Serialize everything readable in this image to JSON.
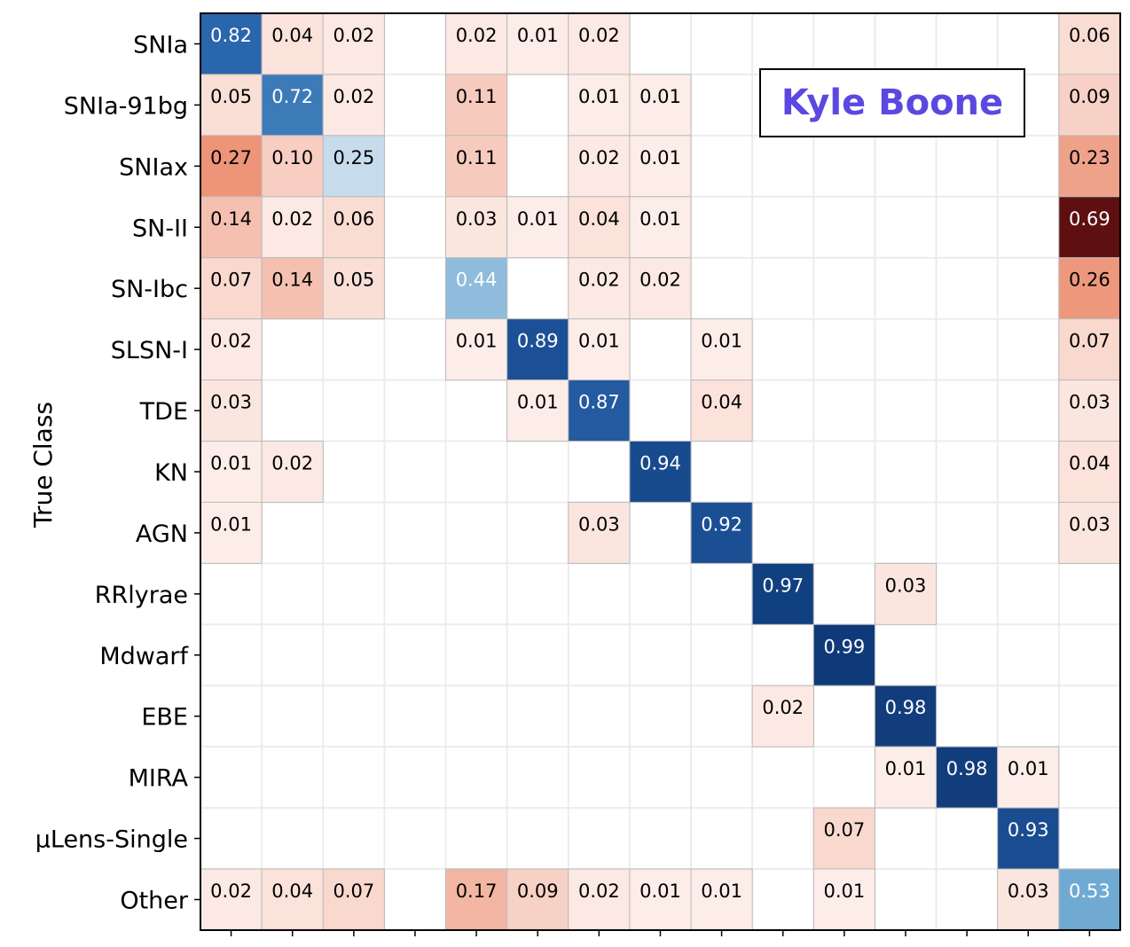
{
  "chart_data": {
    "type": "heatmap",
    "ylabel": "True Class",
    "xlabel": "",
    "row_labels": [
      "SNIa",
      "SNIa-91bg",
      "SNIax",
      "SN-II",
      "SN-Ibc",
      "SLSN-I",
      "TDE",
      "KN",
      "AGN",
      "RRlyrae",
      "Mdwarf",
      "EBE",
      "MIRA",
      "μLens-Single",
      "Other"
    ],
    "n_cols": 15,
    "values": [
      [
        0.82,
        0.04,
        0.02,
        null,
        0.02,
        0.01,
        0.02,
        null,
        null,
        null,
        null,
        null,
        null,
        null,
        0.06
      ],
      [
        0.05,
        0.72,
        0.02,
        null,
        0.11,
        null,
        0.01,
        0.01,
        null,
        null,
        null,
        null,
        null,
        null,
        0.09
      ],
      [
        0.27,
        0.1,
        0.25,
        null,
        0.11,
        null,
        0.02,
        0.01,
        null,
        null,
        null,
        null,
        null,
        null,
        0.23
      ],
      [
        0.14,
        0.02,
        0.06,
        null,
        0.03,
        0.01,
        0.04,
        0.01,
        null,
        null,
        null,
        null,
        null,
        null,
        0.69
      ],
      [
        0.07,
        0.14,
        0.05,
        null,
        0.44,
        null,
        0.02,
        0.02,
        null,
        null,
        null,
        null,
        null,
        null,
        0.26
      ],
      [
        0.02,
        null,
        null,
        null,
        0.01,
        0.89,
        0.01,
        null,
        0.01,
        null,
        null,
        null,
        null,
        null,
        0.07
      ],
      [
        0.03,
        null,
        null,
        null,
        null,
        0.01,
        0.87,
        null,
        0.04,
        null,
        null,
        null,
        null,
        null,
        0.03
      ],
      [
        0.01,
        0.02,
        null,
        null,
        null,
        null,
        null,
        0.94,
        null,
        null,
        null,
        null,
        null,
        null,
        0.04
      ],
      [
        0.01,
        null,
        null,
        null,
        null,
        null,
        0.03,
        null,
        0.92,
        null,
        null,
        null,
        null,
        null,
        0.03
      ],
      [
        null,
        null,
        null,
        null,
        null,
        null,
        null,
        null,
        null,
        0.97,
        null,
        0.03,
        null,
        null,
        null
      ],
      [
        null,
        null,
        null,
        null,
        null,
        null,
        null,
        null,
        null,
        null,
        0.99,
        null,
        null,
        null,
        null
      ],
      [
        null,
        null,
        null,
        null,
        null,
        null,
        null,
        null,
        null,
        0.02,
        null,
        0.98,
        null,
        null,
        null
      ],
      [
        null,
        null,
        null,
        null,
        null,
        null,
        null,
        null,
        null,
        null,
        null,
        0.01,
        0.98,
        0.01,
        null
      ],
      [
        null,
        null,
        null,
        null,
        null,
        null,
        null,
        null,
        null,
        null,
        0.07,
        null,
        null,
        0.93,
        null
      ],
      [
        0.02,
        0.04,
        0.07,
        null,
        0.17,
        0.09,
        0.02,
        0.01,
        0.01,
        null,
        0.01,
        null,
        null,
        0.03,
        0.53
      ]
    ],
    "colors": {
      "diagonal": [
        "#2a66ab",
        "#3d7ab8",
        "#c6dbec",
        null,
        "#8fbcdc",
        "#1c5096",
        "#235aa0",
        "#184a8e",
        "#1b4f94",
        "#114080",
        "#0e3a79",
        "#113d7c",
        "#113d7c",
        "#1a4c92",
        "#70aad2"
      ],
      "other_accent": "#5e0f0f",
      "grid": "#ececec",
      "cell_border": "#bbbbbb"
    },
    "grid": true
  },
  "watermark": {
    "text": "Kyle Boone"
  }
}
